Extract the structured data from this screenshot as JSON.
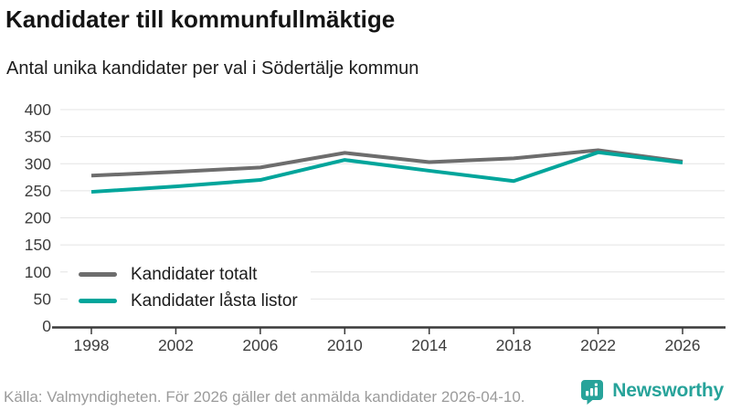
{
  "header": {
    "title": "Kandidater till kommunfullmäktige",
    "subtitle": "Antal unika kandidater per val i Södertälje kommun"
  },
  "chart_data": {
    "type": "line",
    "x": [
      1998,
      2002,
      2006,
      2010,
      2014,
      2018,
      2022,
      2026
    ],
    "series": [
      {
        "name": "Kandidater totalt",
        "color": "#6d6d6d",
        "values": [
          278,
          285,
          293,
          320,
          303,
          310,
          325,
          304
        ]
      },
      {
        "name": "Kandidater låsta listor",
        "color": "#00a59b",
        "values": [
          248,
          258,
          270,
          307,
          287,
          268,
          321,
          302
        ]
      }
    ],
    "ylim": [
      0,
      400
    ],
    "yticks": [
      0,
      50,
      100,
      150,
      200,
      250,
      300,
      350,
      400
    ],
    "grid": "horizontal",
    "legend_position": "inside-bottom-left"
  },
  "footer": {
    "source": "Källa: Valmyndigheten. För 2026 gäller det anmälda kandidater 2026-04-10."
  },
  "brand": {
    "name": "Newsworthy",
    "color": "#27a39a",
    "logo_icon": "bar-chart-speech-bubble-icon"
  }
}
